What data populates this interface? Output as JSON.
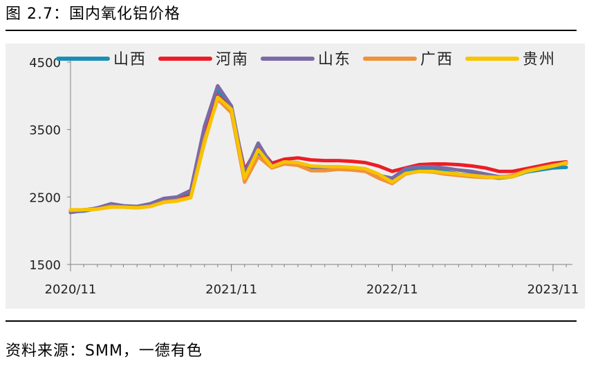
{
  "figure": {
    "title": "图 2.7：国内氧化铝价格",
    "source": "资料来源：SMM，一德有色"
  },
  "chart_data": {
    "type": "line",
    "title": "",
    "xlabel": "",
    "ylabel": "",
    "ylim": [
      1500,
      4500
    ],
    "yticks": [
      1500,
      2500,
      3500,
      4500
    ],
    "xlim": [
      "2020-11-01",
      "2023-12-15"
    ],
    "xticks": [
      {
        "date": "2020-11-01",
        "label": "2020/11"
      },
      {
        "date": "2021-11-01",
        "label": "2021/11"
      },
      {
        "date": "2022-11-01",
        "label": "2022/11"
      },
      {
        "date": "2023-11-01",
        "label": "2023/11"
      }
    ],
    "legend": "top",
    "grid": false,
    "x": [
      "2020-11-01",
      "2020-12-01",
      "2021-01-01",
      "2021-02-01",
      "2021-03-01",
      "2021-04-01",
      "2021-05-01",
      "2021-06-01",
      "2021-07-01",
      "2021-08-01",
      "2021-09-01",
      "2021-10-01",
      "2021-11-01",
      "2021-12-01",
      "2022-01-01",
      "2022-02-01",
      "2022-03-01",
      "2022-04-01",
      "2022-05-01",
      "2022-06-01",
      "2022-07-01",
      "2022-08-01",
      "2022-09-01",
      "2022-10-01",
      "2022-11-01",
      "2022-12-01",
      "2023-01-01",
      "2023-02-01",
      "2023-03-01",
      "2023-04-01",
      "2023-05-01",
      "2023-06-01",
      "2023-07-01",
      "2023-08-01",
      "2023-09-01",
      "2023-10-01",
      "2023-11-01",
      "2023-12-01"
    ],
    "series": [
      {
        "name": "山西",
        "color": "#1a8fb5",
        "values": [
          2280,
          2290,
          2330,
          2390,
          2360,
          2350,
          2380,
          2450,
          2480,
          2550,
          3450,
          4080,
          3850,
          2850,
          3150,
          2940,
          3010,
          2990,
          2930,
          2920,
          2950,
          2920,
          2900,
          2830,
          2760,
          2880,
          2920,
          2910,
          2880,
          2840,
          2830,
          2800,
          2780,
          2800,
          2870,
          2900,
          2930,
          2940
        ]
      },
      {
        "name": "河南",
        "color": "#ee1c25",
        "values": [
          2300,
          2310,
          2330,
          2370,
          2360,
          2350,
          2370,
          2440,
          2460,
          2520,
          3400,
          4000,
          3800,
          2900,
          3250,
          3000,
          3060,
          3080,
          3050,
          3040,
          3040,
          3030,
          3010,
          2960,
          2880,
          2930,
          2980,
          2990,
          2990,
          2980,
          2960,
          2930,
          2880,
          2880,
          2920,
          2960,
          3000,
          3020
        ]
      },
      {
        "name": "山东",
        "color": "#7b6aa6",
        "values": [
          2270,
          2300,
          2340,
          2400,
          2370,
          2360,
          2400,
          2480,
          2500,
          2600,
          3550,
          4150,
          3850,
          2850,
          3300,
          2960,
          3020,
          3010,
          2900,
          2900,
          2930,
          2920,
          2900,
          2820,
          2780,
          2920,
          2950,
          2950,
          2930,
          2900,
          2880,
          2840,
          2800,
          2810,
          2880,
          2920,
          2960,
          3000
        ]
      },
      {
        "name": "广西",
        "color": "#f0923a",
        "values": [
          2300,
          2310,
          2320,
          2360,
          2350,
          2340,
          2360,
          2430,
          2450,
          2500,
          3350,
          3950,
          3750,
          2720,
          3100,
          2930,
          2990,
          2970,
          2890,
          2890,
          2910,
          2900,
          2880,
          2780,
          2700,
          2840,
          2880,
          2870,
          2840,
          2820,
          2800,
          2790,
          2790,
          2820,
          2890,
          2930,
          2970,
          3000
        ]
      },
      {
        "name": "贵州",
        "color": "#f7c400",
        "values": [
          2310,
          2310,
          2320,
          2350,
          2350,
          2340,
          2360,
          2420,
          2440,
          2490,
          3300,
          3980,
          3800,
          2780,
          3200,
          2950,
          3020,
          3010,
          2960,
          2950,
          2950,
          2940,
          2920,
          2840,
          2720,
          2850,
          2880,
          2880,
          2860,
          2840,
          2820,
          2800,
          2790,
          2800,
          2880,
          2920,
          2960,
          3010
        ]
      }
    ]
  }
}
